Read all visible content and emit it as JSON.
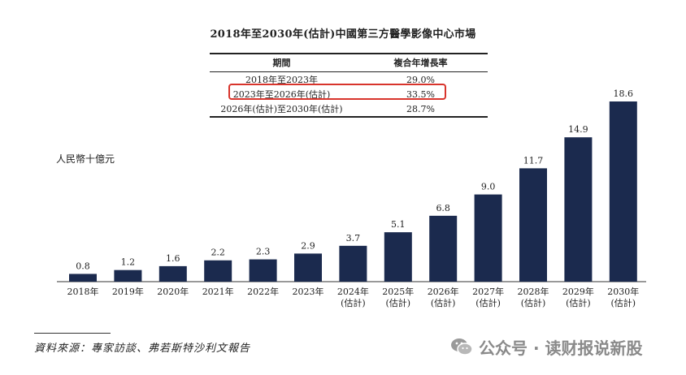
{
  "chart_data": {
    "type": "bar",
    "title": "2018年至2030年(估計)中國第三方醫學影像中心市場",
    "ylabel": "人民幣十億元",
    "xlabel": "",
    "categories": [
      "2018年",
      "2019年",
      "2020年",
      "2021年",
      "2022年",
      "2023年",
      "2024年\n(估計)",
      "2025年\n(估計)",
      "2026年\n(估計)",
      "2027年\n(估計)",
      "2028年\n(估計)",
      "2029年\n(估計)",
      "2030年\n(估計)"
    ],
    "values": [
      0.8,
      1.2,
      1.6,
      2.2,
      2.3,
      2.9,
      3.7,
      5.1,
      6.8,
      9.0,
      11.7,
      14.9,
      18.6
    ],
    "value_labels": [
      "0.8",
      "1.2",
      "1.6",
      "2.2",
      "2.3",
      "2.9",
      "3.7",
      "5.1",
      "6.8",
      "9.0",
      "11.7",
      "14.9",
      "18.6"
    ],
    "bar_color": "#1b2a4e",
    "grid": false,
    "ylim": [
      0,
      18.6
    ]
  },
  "cagr_table": {
    "headers": [
      "期間",
      "複合年增長率"
    ],
    "rows": [
      [
        "2018年至2023年",
        "29.0%"
      ],
      [
        "2023年至2026年(估計)",
        "33.5%"
      ],
      [
        "2026年(估計)至2030年(估計)",
        "28.7%"
      ]
    ],
    "highlight_color": "#d8342c"
  },
  "source": "資料來源：專家訪談、弗若斯特沙利文報告",
  "watermark": "公众号 · 读财报说新股"
}
